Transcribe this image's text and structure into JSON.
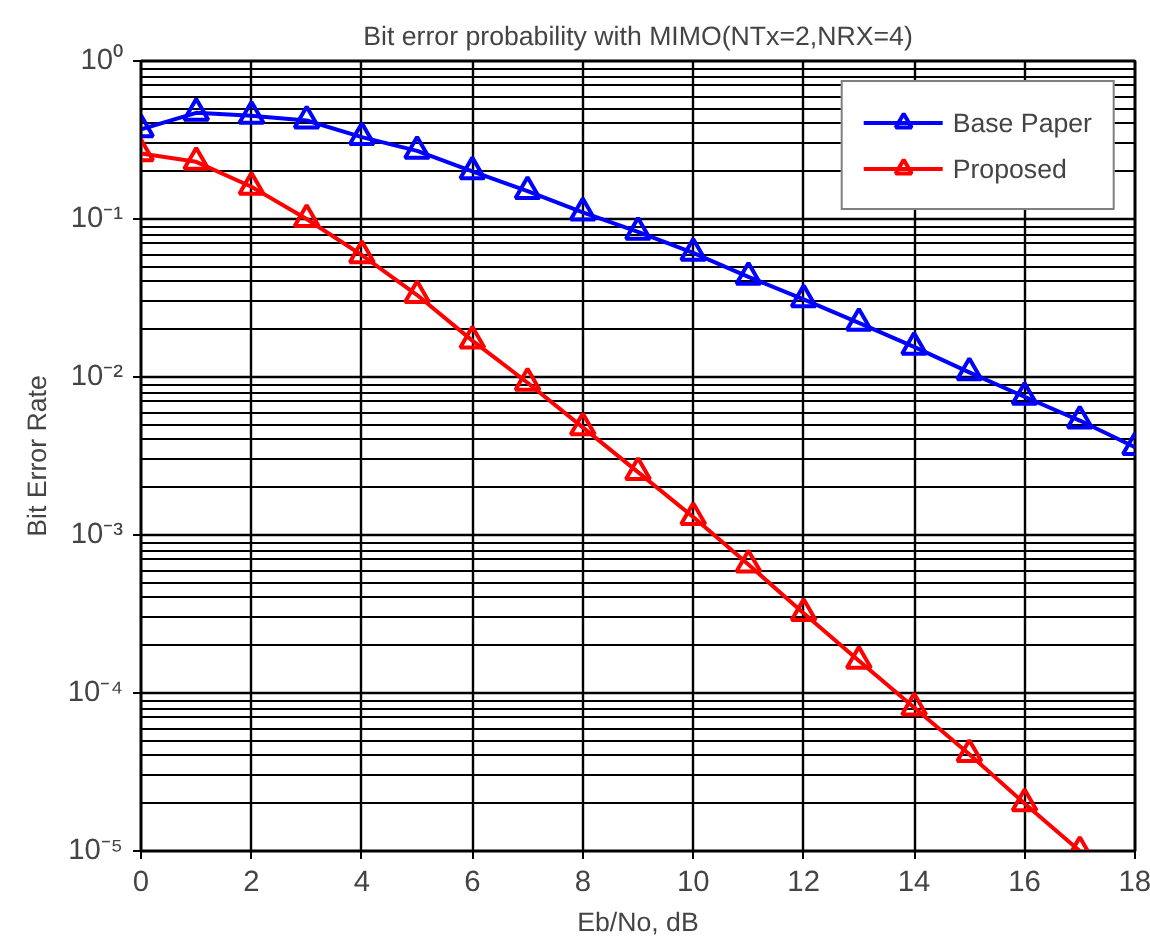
{
  "chart_data": {
    "type": "line",
    "title": "Bit error probability with MIMO(NTx=2,NRX=4)",
    "xlabel": "Eb/No, dB",
    "ylabel": "Bit Error Rate",
    "x": [
      0,
      1,
      2,
      3,
      4,
      5,
      6,
      7,
      8,
      9,
      10,
      11,
      12,
      13,
      14,
      15,
      16,
      17,
      18
    ],
    "series": [
      {
        "name": "Base Paper",
        "color": "#0000ff",
        "values": [
          0.37,
          0.47,
          0.45,
          0.42,
          0.33,
          0.27,
          0.2,
          0.15,
          0.11,
          0.083,
          0.061,
          0.043,
          0.031,
          0.022,
          0.0155,
          0.0107,
          0.0075,
          0.0053,
          0.0036
        ]
      },
      {
        "name": "Proposed",
        "color": "#ff0000",
        "values": [
          0.26,
          0.23,
          0.16,
          0.1,
          0.059,
          0.033,
          0.017,
          0.0092,
          0.0048,
          0.0025,
          0.0013,
          0.00065,
          0.00032,
          0.00016,
          8.1e-05,
          4.1e-05,
          2e-05,
          1e-05,
          null
        ]
      }
    ],
    "xlim": [
      0,
      18
    ],
    "xticks": [
      0,
      2,
      4,
      6,
      8,
      10,
      12,
      14,
      16,
      18
    ],
    "ylim": [
      1e-05,
      1
    ],
    "yticks": [
      {
        "value": 1e-05,
        "label": "10⁻⁵"
      },
      {
        "value": 0.0001,
        "label": "10⁻⁴"
      },
      {
        "value": 0.001,
        "label": "10⁻³"
      },
      {
        "value": 0.01,
        "label": "10⁻²"
      },
      {
        "value": 0.1,
        "label": "10⁻¹"
      },
      {
        "value": 1,
        "label": "10⁰"
      }
    ],
    "log": "y",
    "grid": true,
    "legend": "top right",
    "marker": "triangle",
    "line_style": "solid"
  }
}
